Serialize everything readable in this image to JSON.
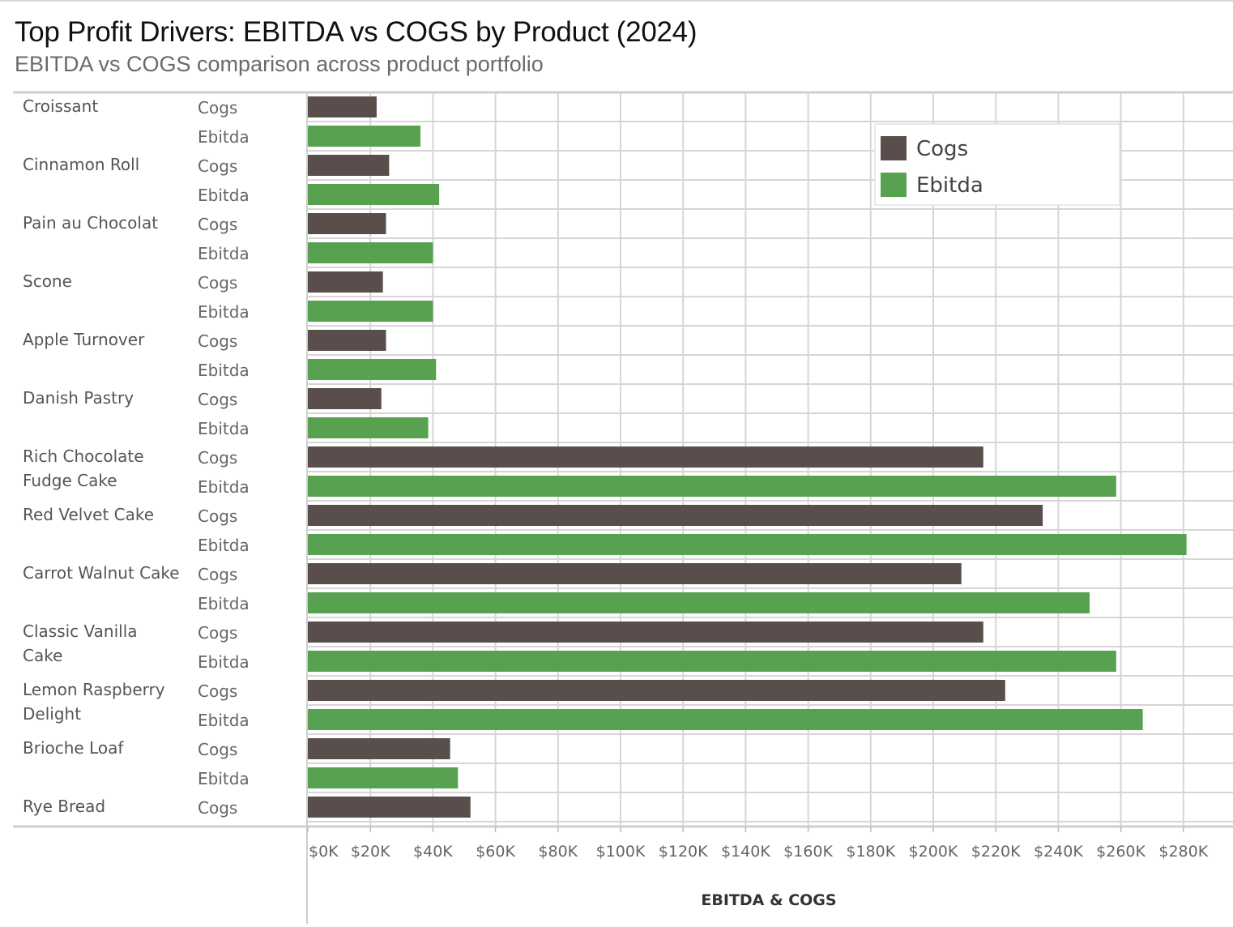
{
  "title": "Top Profit Drivers: EBITDA vs COGS by Product (2024)",
  "subtitle": "EBITDA vs COGS comparison across product portfolio",
  "colors": {
    "Cogs": "#5a4e4c",
    "Ebitda": "#57a150",
    "grid": "#d6d6d6"
  },
  "chart_data": {
    "type": "bar",
    "orientation": "horizontal",
    "title": "Top Profit Drivers: EBITDA vs COGS by Product (2024)",
    "subtitle": "EBITDA vs COGS comparison across product portfolio",
    "xlabel": "EBITDA & COGS",
    "xlim": [
      0,
      290000
    ],
    "x_ticks": [
      0,
      20000,
      40000,
      60000,
      80000,
      100000,
      120000,
      140000,
      160000,
      180000,
      200000,
      220000,
      240000,
      260000,
      280000
    ],
    "x_tick_labels": [
      "$0K",
      "$20K",
      "$40K",
      "$60K",
      "$80K",
      "$100K",
      "$120K",
      "$140K",
      "$160K",
      "$180K",
      "$200K",
      "$220K",
      "$240K",
      "$260K",
      "$280K"
    ],
    "grid": true,
    "legend": {
      "position": "top-right",
      "entries": [
        "Cogs",
        "Ebitda"
      ]
    },
    "series": [
      {
        "name": "Cogs",
        "color": "#5a4e4c"
      },
      {
        "name": "Ebitda",
        "color": "#57a150"
      }
    ],
    "rows": [
      {
        "product": "Croissant",
        "measure": "Cogs",
        "value": 22000
      },
      {
        "product": "",
        "measure": "Ebitda",
        "value": 36000
      },
      {
        "product": "Cinnamon Roll",
        "measure": "Cogs",
        "value": 26000
      },
      {
        "product": "",
        "measure": "Ebitda",
        "value": 42000
      },
      {
        "product": "Pain au Chocolat",
        "measure": "Cogs",
        "value": 25000
      },
      {
        "product": "",
        "measure": "Ebitda",
        "value": 40000
      },
      {
        "product": "Scone",
        "measure": "Cogs",
        "value": 24000
      },
      {
        "product": "",
        "measure": "Ebitda",
        "value": 40000
      },
      {
        "product": "Apple Turnover",
        "measure": "Cogs",
        "value": 25000
      },
      {
        "product": "",
        "measure": "Ebitda",
        "value": 41000
      },
      {
        "product": "Danish Pastry",
        "measure": "Cogs",
        "value": 23500
      },
      {
        "product": "",
        "measure": "Ebitda",
        "value": 38500
      },
      {
        "product": "Rich Chocolate Fudge Cake",
        "measure": "Cogs",
        "value": 216000
      },
      {
        "product": "",
        "measure": "Ebitda",
        "value": 258500
      },
      {
        "product": "Red Velvet Cake",
        "measure": "Cogs",
        "value": 235000
      },
      {
        "product": "",
        "measure": "Ebitda",
        "value": 281000
      },
      {
        "product": "Carrot Walnut Cake",
        "measure": "Cogs",
        "value": 209000
      },
      {
        "product": "",
        "measure": "Ebitda",
        "value": 250000
      },
      {
        "product": "Classic Vanilla Cake",
        "measure": "Cogs",
        "value": 216000
      },
      {
        "product": "",
        "measure": "Ebitda",
        "value": 258500
      },
      {
        "product": "Lemon Raspberry Delight",
        "measure": "Cogs",
        "value": 223000
      },
      {
        "product": "",
        "measure": "Ebitda",
        "value": 267000
      },
      {
        "product": "Brioche Loaf",
        "measure": "Cogs",
        "value": 45500
      },
      {
        "product": "",
        "measure": "Ebitda",
        "value": 48000
      },
      {
        "product": "Rye Bread",
        "measure": "Cogs",
        "value": 52000
      }
    ]
  }
}
